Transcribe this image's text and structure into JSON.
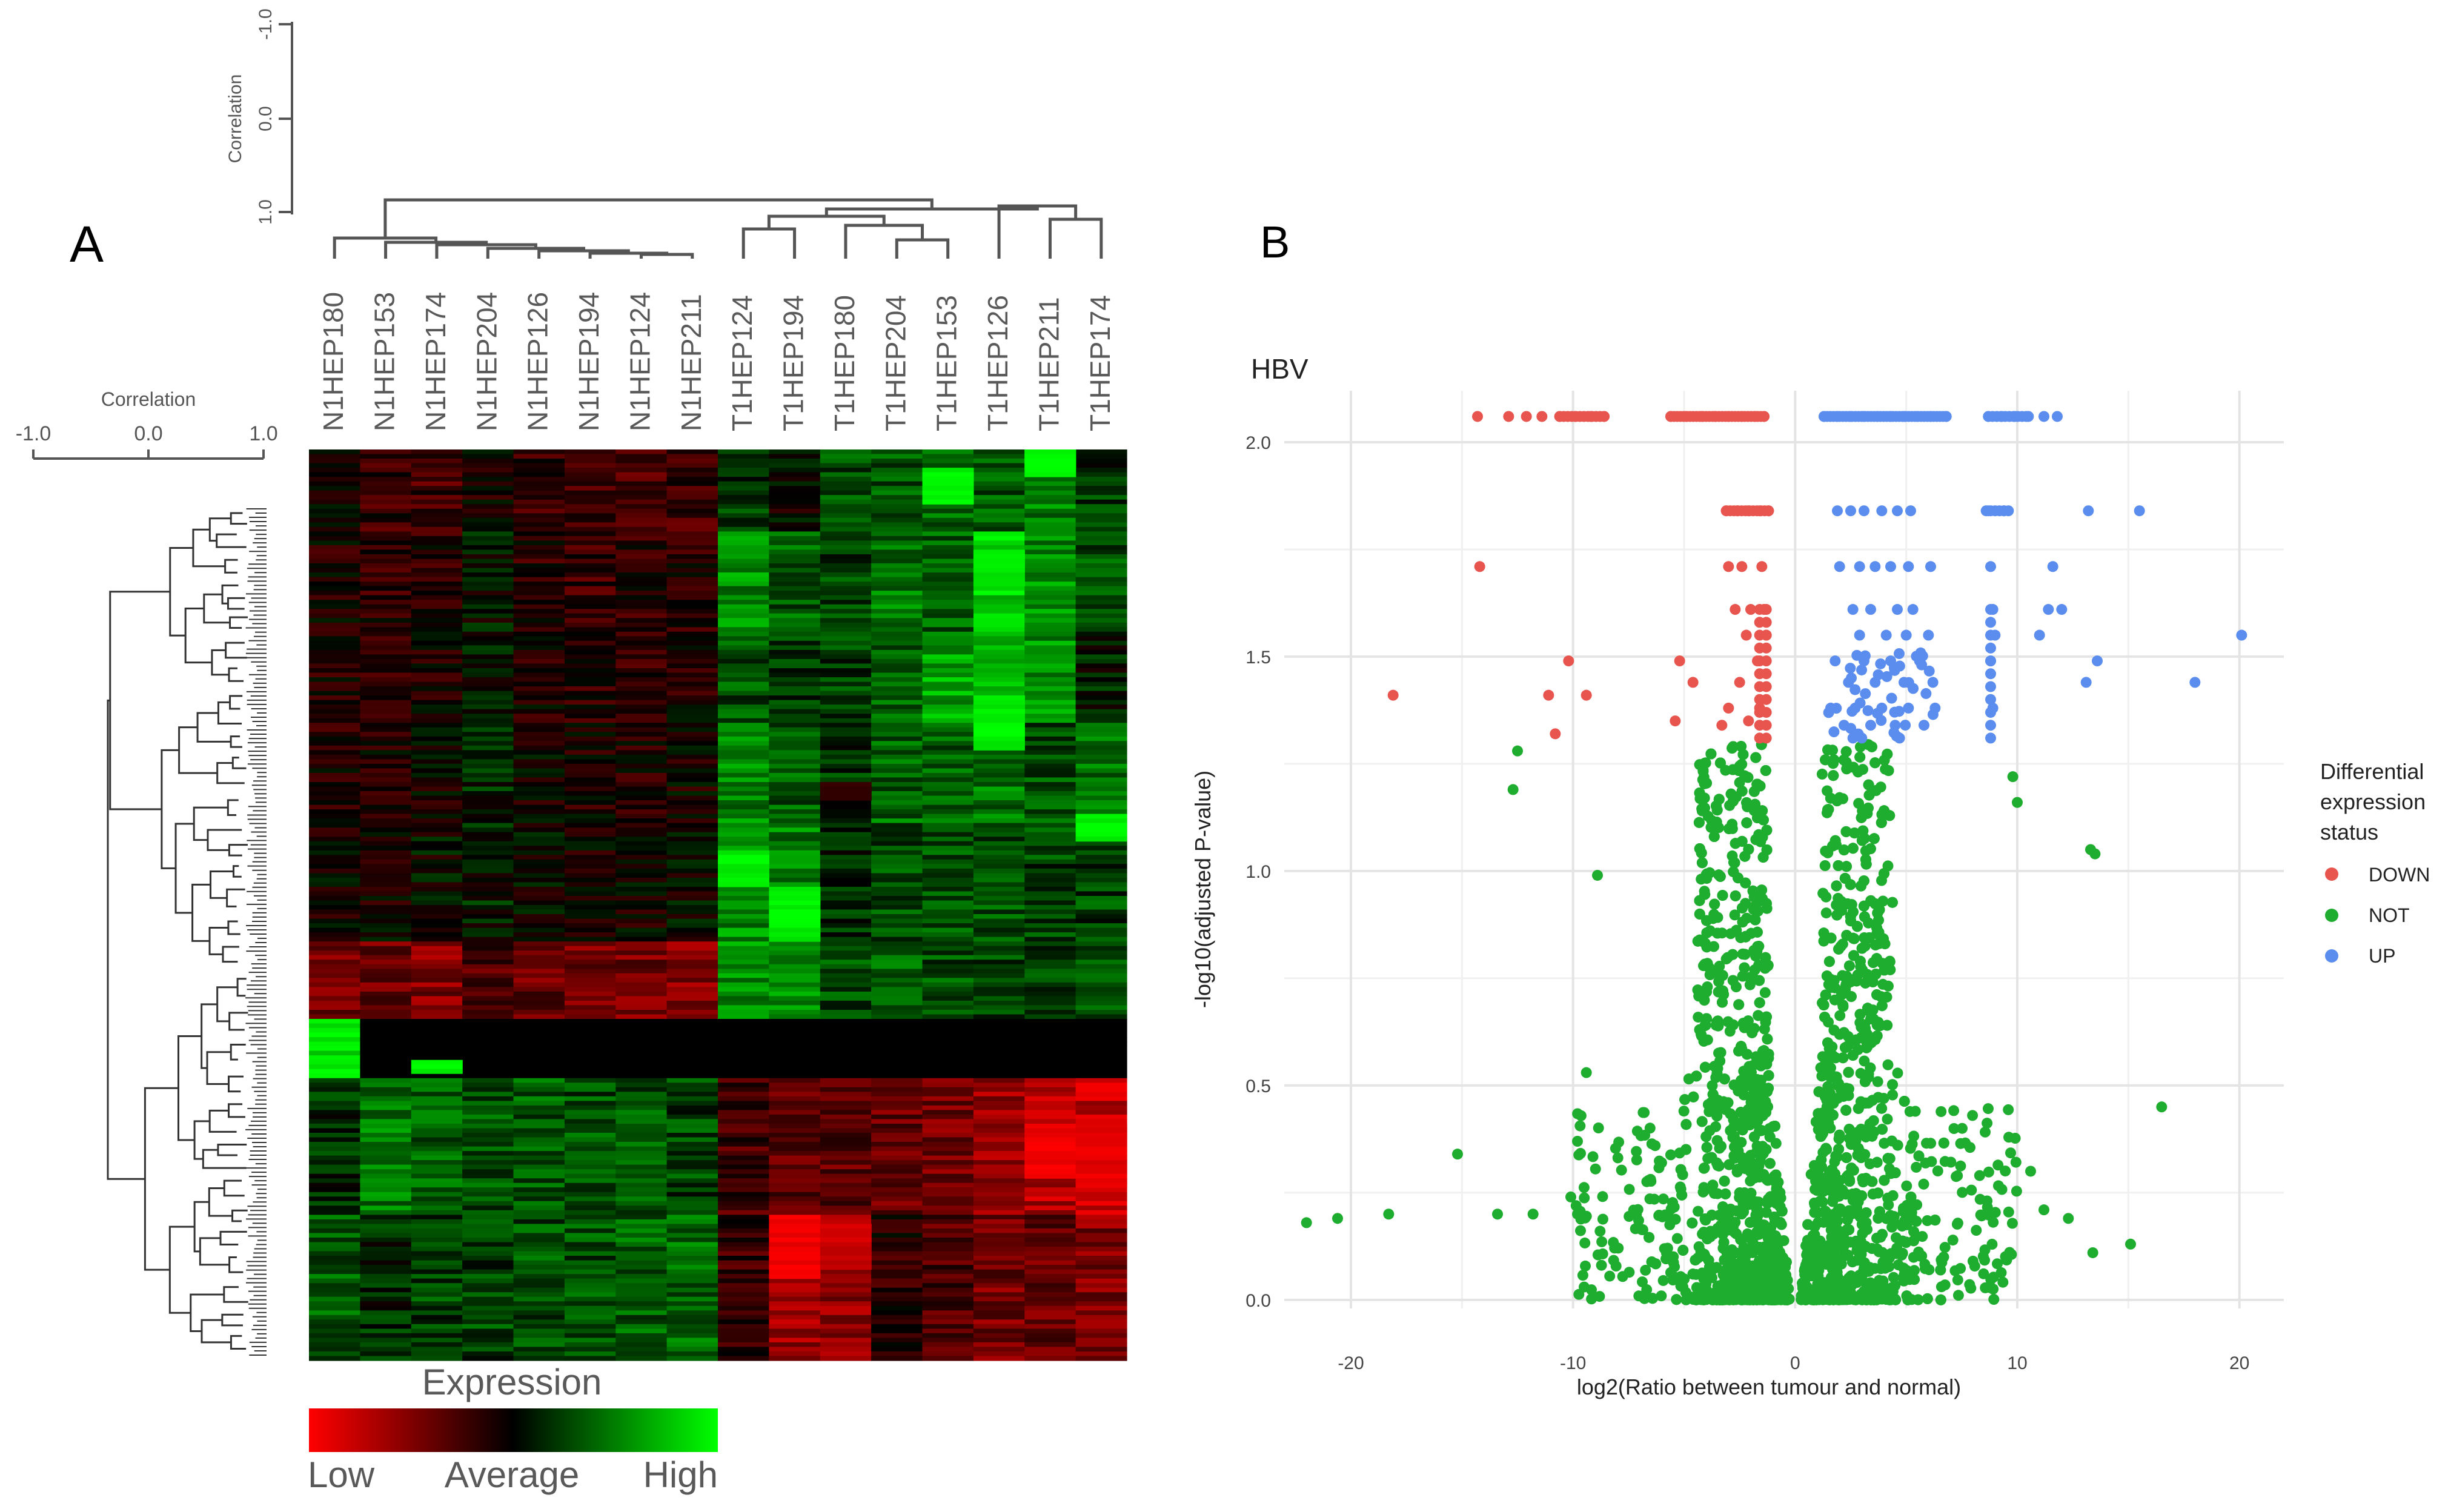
{
  "panel_a": {
    "label": "A",
    "colcorr_label": "Correlation",
    "colcorr_ticks": [
      "-1.0",
      "0.0",
      "1.0"
    ],
    "rowcorr_label": "Correlation",
    "rowcorr_ticks": [
      "-1.0",
      "0.0",
      "1.0"
    ],
    "samples": [
      "N1HEP180",
      "N1HEP153",
      "N1HEP174",
      "N1HEP204",
      "N1HEP126",
      "N1HEP194",
      "N1HEP124",
      "N1HEP211",
      "T1HEP124",
      "T1HEP194",
      "T1HEP180",
      "T1HEP204",
      "T1HEP153",
      "T1HEP126",
      "T1HEP211",
      "T1HEP174"
    ],
    "legend": {
      "title": "Expression",
      "low": "Low",
      "average": "Average",
      "high": "High"
    },
    "colors": {
      "low": "#ff0000",
      "average": "#000000",
      "high": "#00ff00",
      "dendro": "#555555"
    }
  },
  "panel_b": {
    "label": "B",
    "legend_title": [
      "Differential",
      "expression",
      "status"
    ],
    "legend_entries": [
      {
        "name": "DOWN",
        "color": "#e8544e"
      },
      {
        "name": "NOT",
        "color": "#1fad2f"
      },
      {
        "name": "UP",
        "color": "#5b8def"
      }
    ]
  },
  "chart_data": [
    {
      "type": "heatmap",
      "title": "",
      "rows": 200,
      "columns": [
        "N1HEP180",
        "N1HEP153",
        "N1HEP174",
        "N1HEP204",
        "N1HEP126",
        "N1HEP194",
        "N1HEP124",
        "N1HEP211",
        "T1HEP124",
        "T1HEP194",
        "T1HEP180",
        "T1HEP204",
        "T1HEP153",
        "T1HEP126",
        "T1HEP211",
        "T1HEP174"
      ],
      "value_scale": [
        "Low",
        "Average",
        "High"
      ],
      "blocks": [
        {
          "rows": [
            0,
            18
          ],
          "values": [
            0.0,
            -0.2,
            -0.25,
            -0.1,
            -0.2,
            -0.25,
            -0.25,
            -0.25,
            0.2,
            0.0,
            0.3,
            0.35,
            0.4,
            0.35,
            0.5,
            0.2
          ]
        },
        {
          "rows": [
            18,
            40
          ],
          "values": [
            -0.1,
            -0.15,
            -0.15,
            0.05,
            -0.15,
            -0.2,
            -0.15,
            -0.15,
            0.55,
            0.35,
            0.25,
            0.45,
            0.35,
            0.85,
            0.55,
            0.3
          ]
        },
        {
          "rows": [
            40,
            60
          ],
          "values": [
            -0.1,
            -0.15,
            -0.1,
            0.1,
            -0.1,
            -0.15,
            -0.15,
            -0.1,
            0.3,
            0.2,
            0.25,
            0.4,
            0.65,
            0.8,
            0.55,
            0.1
          ]
        },
        {
          "rows": [
            60,
            82
          ],
          "values": [
            -0.1,
            -0.1,
            -0.05,
            0.15,
            -0.05,
            -0.1,
            -0.1,
            -0.05,
            0.5,
            0.35,
            0.2,
            0.4,
            0.35,
            0.45,
            0.3,
            0.45
          ]
        },
        {
          "rows": [
            82,
            108
          ],
          "values": [
            -0.05,
            -0.05,
            0.0,
            0.1,
            0.0,
            -0.05,
            -0.05,
            0.0,
            0.55,
            0.5,
            0.15,
            0.3,
            0.3,
            0.3,
            0.25,
            0.25
          ]
        },
        {
          "rows": [
            108,
            125
          ],
          "values": [
            -0.45,
            -0.4,
            -0.5,
            -0.3,
            -0.4,
            -0.45,
            -0.45,
            -0.5,
            0.55,
            0.5,
            0.3,
            0.4,
            0.3,
            0.25,
            0.25,
            0.3
          ]
        },
        {
          "rows": [
            125,
            138
          ],
          "values": [
            0.95,
            0.0,
            0.0,
            0.0,
            0.0,
            0.0,
            0.0,
            0.0,
            0.0,
            0.0,
            0.0,
            0.0,
            0.0,
            0.0,
            0.0,
            0.0
          ]
        },
        {
          "rows": [
            138,
            168
          ],
          "values": [
            0.15,
            0.45,
            0.35,
            0.3,
            0.35,
            0.3,
            0.3,
            0.25,
            -0.25,
            -0.35,
            -0.35,
            -0.4,
            -0.45,
            -0.6,
            -0.7,
            -0.75
          ]
        },
        {
          "rows": [
            168,
            200
          ],
          "values": [
            0.35,
            0.15,
            0.25,
            0.25,
            0.3,
            0.3,
            0.35,
            0.4,
            -0.2,
            -0.6,
            -0.55,
            -0.15,
            -0.3,
            -0.45,
            -0.4,
            -0.5
          ]
        }
      ]
    },
    {
      "type": "scatter",
      "title": "HBV",
      "xlabel": "log2(Ratio between tumour and normal)",
      "ylabel": "-log10(adjusted P-value)",
      "xlim": [
        -23,
        22
      ],
      "ylim": [
        -0.02,
        2.12
      ],
      "xticks": [
        -20,
        -10,
        0,
        10,
        20
      ],
      "yticks": [
        0.0,
        0.5,
        1.0,
        1.5,
        2.0
      ],
      "xtick_labels": [
        "-20",
        "-10",
        "0",
        "10",
        "20"
      ],
      "ytick_labels": [
        "0.0",
        "0.5",
        "1.0",
        "1.5",
        "2.0"
      ],
      "legend_title": "Differential expression status",
      "series": [
        {
          "name": "DOWN",
          "color": "#e8544e",
          "points": [
            [
              -14.3,
              2.06
            ],
            [
              -12.9,
              2.06
            ],
            [
              -12.1,
              2.06
            ],
            [
              -11.4,
              2.06
            ],
            [
              -10.6,
              2.06
            ],
            [
              -9.9,
              2.06
            ],
            [
              -9.2,
              2.06
            ],
            [
              -8.6,
              2.06
            ],
            [
              -5.6,
              2.06
            ],
            [
              -4.9,
              2.06
            ],
            [
              -4.2,
              2.06
            ],
            [
              -3.6,
              2.06
            ],
            [
              -3.0,
              2.06
            ],
            [
              -2.4,
              2.06
            ],
            [
              -1.8,
              2.06
            ],
            [
              -1.4,
              2.06
            ],
            [
              -3.1,
              1.84
            ],
            [
              -2.6,
              1.84
            ],
            [
              -2.1,
              1.84
            ],
            [
              -1.6,
              1.84
            ],
            [
              -1.2,
              1.84
            ],
            [
              -14.2,
              1.71
            ],
            [
              -3.0,
              1.71
            ],
            [
              -2.4,
              1.71
            ],
            [
              -1.5,
              1.71
            ],
            [
              -2.7,
              1.61
            ],
            [
              -2.0,
              1.61
            ],
            [
              -1.4,
              1.61
            ],
            [
              -2.2,
              1.55
            ],
            [
              -1.3,
              1.55
            ],
            [
              -10.2,
              1.49
            ],
            [
              -5.2,
              1.49
            ],
            [
              -1.7,
              1.49
            ],
            [
              -11.1,
              1.41
            ],
            [
              -9.4,
              1.41
            ],
            [
              -18.1,
              1.41
            ],
            [
              -4.6,
              1.44
            ],
            [
              -2.5,
              1.44
            ],
            [
              -3.0,
              1.38
            ],
            [
              -1.6,
              1.38
            ],
            [
              -5.4,
              1.35
            ],
            [
              -2.1,
              1.35
            ],
            [
              -10.8,
              1.32
            ],
            [
              -3.3,
              1.34
            ]
          ]
        },
        {
          "name": "UP",
          "color": "#5b8def",
          "points": [
            [
              1.3,
              2.06
            ],
            [
              1.9,
              2.06
            ],
            [
              2.5,
              2.06
            ],
            [
              3.1,
              2.06
            ],
            [
              3.7,
              2.06
            ],
            [
              4.3,
              2.06
            ],
            [
              4.9,
              2.06
            ],
            [
              5.5,
              2.06
            ],
            [
              6.1,
              2.06
            ],
            [
              6.8,
              2.06
            ],
            [
              8.7,
              2.06
            ],
            [
              9.3,
              2.06
            ],
            [
              9.9,
              2.06
            ],
            [
              10.5,
              2.06
            ],
            [
              11.2,
              2.06
            ],
            [
              11.8,
              2.06
            ],
            [
              1.9,
              1.84
            ],
            [
              2.5,
              1.84
            ],
            [
              3.1,
              1.84
            ],
            [
              3.9,
              1.84
            ],
            [
              4.6,
              1.84
            ],
            [
              5.2,
              1.84
            ],
            [
              8.7,
              1.84
            ],
            [
              9.4,
              1.84
            ],
            [
              13.2,
              1.84
            ],
            [
              15.5,
              1.84
            ],
            [
              2.0,
              1.71
            ],
            [
              2.9,
              1.71
            ],
            [
              3.6,
              1.71
            ],
            [
              4.3,
              1.71
            ],
            [
              5.1,
              1.71
            ],
            [
              6.1,
              1.71
            ],
            [
              8.8,
              1.71
            ],
            [
              11.6,
              1.71
            ],
            [
              2.6,
              1.61
            ],
            [
              3.4,
              1.61
            ],
            [
              4.6,
              1.61
            ],
            [
              5.3,
              1.61
            ],
            [
              8.9,
              1.61
            ],
            [
              11.4,
              1.61
            ],
            [
              12.0,
              1.61
            ],
            [
              11.0,
              1.55
            ],
            [
              2.9,
              1.55
            ],
            [
              4.1,
              1.55
            ],
            [
              5.0,
              1.55
            ],
            [
              6.0,
              1.55
            ],
            [
              9.0,
              1.55
            ],
            [
              20.1,
              1.55
            ],
            [
              1.8,
              1.49
            ],
            [
              3.1,
              1.49
            ],
            [
              4.3,
              1.49
            ],
            [
              5.6,
              1.49
            ],
            [
              8.8,
              1.49
            ],
            [
              13.6,
              1.49
            ],
            [
              2.4,
              1.44
            ],
            [
              3.6,
              1.44
            ],
            [
              4.9,
              1.44
            ],
            [
              6.2,
              1.44
            ],
            [
              13.1,
              1.44
            ],
            [
              18.0,
              1.44
            ],
            [
              1.6,
              1.38
            ],
            [
              2.7,
              1.38
            ],
            [
              3.9,
              1.38
            ],
            [
              5.1,
              1.38
            ],
            [
              6.3,
              1.38
            ],
            [
              8.9,
              1.38
            ],
            [
              2.2,
              1.34
            ],
            [
              3.4,
              1.34
            ],
            [
              4.5,
              1.34
            ],
            [
              5.8,
              1.34
            ],
            [
              2.6,
              1.31
            ],
            [
              3.0,
              1.31
            ],
            [
              4.7,
              1.31
            ]
          ]
        },
        {
          "name": "NOT",
          "color": "#1fad2f",
          "shape": "two dense V-shaped clouds around x = -3 and x = +3, from y = 0 up to y = 1.3, plus sparse outliers",
          "outliers": [
            [
              -22.0,
              0.18
            ],
            [
              -20.6,
              0.19
            ],
            [
              -18.3,
              0.2
            ],
            [
              -15.2,
              0.34
            ],
            [
              -13.4,
              0.2
            ],
            [
              -11.8,
              0.2
            ],
            [
              -9.4,
              0.53
            ],
            [
              -8.9,
              0.99
            ],
            [
              -12.5,
              1.28
            ],
            [
              -12.7,
              1.19
            ],
            [
              -9.8,
              0.2
            ],
            [
              -10.1,
              0.24
            ],
            [
              -9.5,
              0.03
            ],
            [
              9.8,
              1.22
            ],
            [
              10.0,
              1.16
            ],
            [
              13.3,
              1.05
            ],
            [
              13.5,
              1.04
            ],
            [
              12.3,
              0.19
            ],
            [
              13.4,
              0.11
            ],
            [
              15.1,
              0.13
            ],
            [
              16.5,
              0.45
            ],
            [
              10.6,
              0.3
            ],
            [
              11.2,
              0.21
            ]
          ]
        }
      ]
    }
  ]
}
